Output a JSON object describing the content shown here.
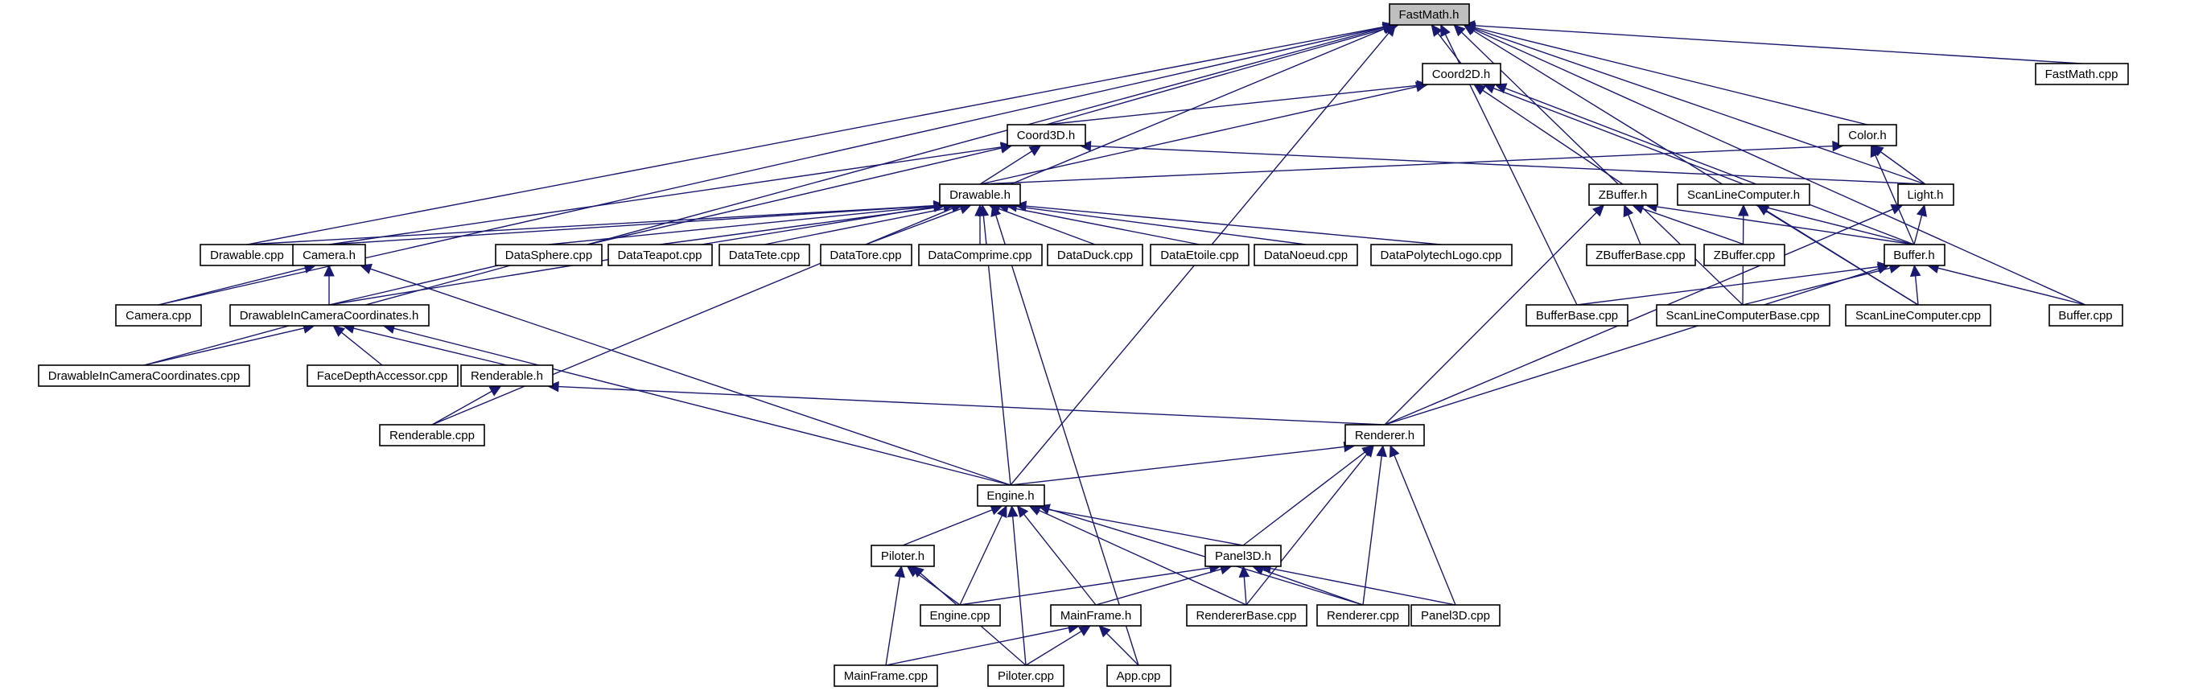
{
  "graph": {
    "title": "",
    "colors": {
      "edge": "#191970",
      "node_border": "#000000",
      "node_fill": "#ffffff",
      "root_fill": "#bfbfbf"
    },
    "nodes": [
      {
        "id": "FastMath.h",
        "label": "FastMath.h",
        "root": true
      },
      {
        "id": "Coord2D.h",
        "label": "Coord2D.h"
      },
      {
        "id": "FastMath.cpp",
        "label": "FastMath.cpp"
      },
      {
        "id": "Coord3D.h",
        "label": "Coord3D.h"
      },
      {
        "id": "Color.h",
        "label": "Color.h"
      },
      {
        "id": "Drawable.h",
        "label": "Drawable.h"
      },
      {
        "id": "ZBuffer.h",
        "label": "ZBuffer.h"
      },
      {
        "id": "ScanLineComputer.h",
        "label": "ScanLineComputer.h"
      },
      {
        "id": "Light.h",
        "label": "Light.h"
      },
      {
        "id": "Drawable.cpp",
        "label": "Drawable.cpp"
      },
      {
        "id": "Camera.h",
        "label": "Camera.h"
      },
      {
        "id": "DataSphere.cpp",
        "label": "DataSphere.cpp"
      },
      {
        "id": "DataTeapot.cpp",
        "label": "DataTeapot.cpp"
      },
      {
        "id": "DataTete.cpp",
        "label": "DataTete.cpp"
      },
      {
        "id": "DataTore.cpp",
        "label": "DataTore.cpp"
      },
      {
        "id": "DataComprime.cpp",
        "label": "DataComprime.cpp"
      },
      {
        "id": "DataDuck.cpp",
        "label": "DataDuck.cpp"
      },
      {
        "id": "DataEtoile.cpp",
        "label": "DataEtoile.cpp"
      },
      {
        "id": "DataNoeud.cpp",
        "label": "DataNoeud.cpp"
      },
      {
        "id": "DataPolytechLogo.cpp",
        "label": "DataPolytechLogo.cpp"
      },
      {
        "id": "ZBufferBase.cpp",
        "label": "ZBufferBase.cpp"
      },
      {
        "id": "ZBuffer.cpp",
        "label": "ZBuffer.cpp"
      },
      {
        "id": "Buffer.h",
        "label": "Buffer.h"
      },
      {
        "id": "Camera.cpp",
        "label": "Camera.cpp"
      },
      {
        "id": "DrawableInCameraCoordinates.h",
        "label": "DrawableInCameraCoordinates.h"
      },
      {
        "id": "BufferBase.cpp",
        "label": "BufferBase.cpp"
      },
      {
        "id": "ScanLineComputerBase.cpp",
        "label": "ScanLineComputerBase.cpp"
      },
      {
        "id": "ScanLineComputer.cpp",
        "label": "ScanLineComputer.cpp"
      },
      {
        "id": "Buffer.cpp",
        "label": "Buffer.cpp"
      },
      {
        "id": "DrawableInCameraCoordinates.cpp",
        "label": "DrawableInCameraCoordinates.cpp"
      },
      {
        "id": "FaceDepthAccessor.cpp",
        "label": "FaceDepthAccessor.cpp"
      },
      {
        "id": "Renderable.h",
        "label": "Renderable.h"
      },
      {
        "id": "Renderable.cpp",
        "label": "Renderable.cpp"
      },
      {
        "id": "Renderer.h",
        "label": "Renderer.h"
      },
      {
        "id": "Engine.h",
        "label": "Engine.h"
      },
      {
        "id": "Piloter.h",
        "label": "Piloter.h"
      },
      {
        "id": "Panel3D.h",
        "label": "Panel3D.h"
      },
      {
        "id": "Engine.cpp",
        "label": "Engine.cpp"
      },
      {
        "id": "MainFrame.h",
        "label": "MainFrame.h"
      },
      {
        "id": "RendererBase.cpp",
        "label": "RendererBase.cpp"
      },
      {
        "id": "Renderer.cpp",
        "label": "Renderer.cpp"
      },
      {
        "id": "Panel3D.cpp",
        "label": "Panel3D.cpp"
      },
      {
        "id": "MainFrame.cpp",
        "label": "MainFrame.cpp"
      },
      {
        "id": "Piloter.cpp",
        "label": "Piloter.cpp"
      },
      {
        "id": "App.cpp",
        "label": "App.cpp"
      }
    ],
    "edges": [
      [
        "Coord2D.h",
        "FastMath.h"
      ],
      [
        "FastMath.cpp",
        "FastMath.h"
      ],
      [
        "Coord3D.h",
        "FastMath.h"
      ],
      [
        "Color.h",
        "FastMath.h"
      ],
      [
        "Light.h",
        "FastMath.h"
      ],
      [
        "Drawable.cpp",
        "FastMath.h"
      ],
      [
        "Camera.cpp",
        "FastMath.h"
      ],
      [
        "DrawableInCameraCoordinates.cpp",
        "FastMath.h"
      ],
      [
        "Renderable.cpp",
        "FastMath.h"
      ],
      [
        "Engine.h",
        "FastMath.h"
      ],
      [
        "BufferBase.cpp",
        "FastMath.h"
      ],
      [
        "ScanLineComputerBase.cpp",
        "FastMath.h"
      ],
      [
        "ScanLineComputer.cpp",
        "FastMath.h"
      ],
      [
        "Buffer.cpp",
        "FastMath.h"
      ],
      [
        "Coord3D.h",
        "Coord2D.h"
      ],
      [
        "Drawable.h",
        "Coord2D.h"
      ],
      [
        "ZBuffer.h",
        "Coord2D.h"
      ],
      [
        "ScanLineComputer.h",
        "Coord2D.h"
      ],
      [
        "Buffer.h",
        "Coord2D.h"
      ],
      [
        "Drawable.h",
        "Coord3D.h"
      ],
      [
        "Light.h",
        "Coord3D.h"
      ],
      [
        "Camera.h",
        "Coord3D.h"
      ],
      [
        "DrawableInCameraCoordinates.h",
        "Coord3D.h"
      ],
      [
        "Drawable.h",
        "Color.h"
      ],
      [
        "Light.h",
        "Color.h"
      ],
      [
        "Buffer.h",
        "Color.h"
      ],
      [
        "Buffer.h",
        "Light.h"
      ],
      [
        "Renderer.h",
        "Light.h"
      ],
      [
        "Drawable.cpp",
        "Drawable.h"
      ],
      [
        "Camera.h",
        "Drawable.h"
      ],
      [
        "DrawableInCameraCoordinates.h",
        "Drawable.h"
      ],
      [
        "DataSphere.cpp",
        "Drawable.h"
      ],
      [
        "DataTeapot.cpp",
        "Drawable.h"
      ],
      [
        "DataTete.cpp",
        "Drawable.h"
      ],
      [
        "DataTore.cpp",
        "Drawable.h"
      ],
      [
        "DataComprime.cpp",
        "Drawable.h"
      ],
      [
        "DataDuck.cpp",
        "Drawable.h"
      ],
      [
        "DataEtoile.cpp",
        "Drawable.h"
      ],
      [
        "DataNoeud.cpp",
        "Drawable.h"
      ],
      [
        "DataPolytechLogo.cpp",
        "Drawable.h"
      ],
      [
        "Engine.h",
        "Drawable.h"
      ],
      [
        "App.cpp",
        "Drawable.h"
      ],
      [
        "ZBufferBase.cpp",
        "ZBuffer.h"
      ],
      [
        "ZBuffer.cpp",
        "ZBuffer.h"
      ],
      [
        "Buffer.h",
        "ZBuffer.h"
      ],
      [
        "Renderer.h",
        "ZBuffer.h"
      ],
      [
        "Buffer.h",
        "ScanLineComputer.h"
      ],
      [
        "ScanLineComputerBase.cpp",
        "ScanLineComputer.h"
      ],
      [
        "ScanLineComputer.cpp",
        "ScanLineComputer.h"
      ],
      [
        "Camera.cpp",
        "Camera.h"
      ],
      [
        "DrawableInCameraCoordinates.h",
        "Camera.h"
      ],
      [
        "Engine.h",
        "Camera.h"
      ],
      [
        "BufferBase.cpp",
        "Buffer.h"
      ],
      [
        "ScanLineComputerBase.cpp",
        "Buffer.h"
      ],
      [
        "ScanLineComputer.cpp",
        "Buffer.h"
      ],
      [
        "Buffer.cpp",
        "Buffer.h"
      ],
      [
        "Renderer.h",
        "Buffer.h"
      ],
      [
        "DrawableInCameraCoordinates.cpp",
        "DrawableInCameraCoordinates.h"
      ],
      [
        "FaceDepthAccessor.cpp",
        "DrawableInCameraCoordinates.h"
      ],
      [
        "Renderable.h",
        "DrawableInCameraCoordinates.h"
      ],
      [
        "Engine.h",
        "DrawableInCameraCoordinates.h"
      ],
      [
        "Renderable.cpp",
        "Renderable.h"
      ],
      [
        "Renderer.h",
        "Renderable.h"
      ],
      [
        "Engine.h",
        "Renderer.h"
      ],
      [
        "Panel3D.h",
        "Renderer.h"
      ],
      [
        "RendererBase.cpp",
        "Renderer.h"
      ],
      [
        "Renderer.cpp",
        "Renderer.h"
      ],
      [
        "Panel3D.cpp",
        "Renderer.h"
      ],
      [
        "Piloter.h",
        "Engine.h"
      ],
      [
        "Panel3D.h",
        "Engine.h"
      ],
      [
        "Engine.cpp",
        "Engine.h"
      ],
      [
        "MainFrame.h",
        "Engine.h"
      ],
      [
        "RendererBase.cpp",
        "Engine.h"
      ],
      [
        "Renderer.cpp",
        "Engine.h"
      ],
      [
        "Piloter.cpp",
        "Engine.h"
      ],
      [
        "Engine.cpp",
        "Piloter.h"
      ],
      [
        "MainFrame.cpp",
        "Piloter.h"
      ],
      [
        "Piloter.cpp",
        "Piloter.h"
      ],
      [
        "Engine.cpp",
        "Panel3D.h"
      ],
      [
        "MainFrame.h",
        "Panel3D.h"
      ],
      [
        "RendererBase.cpp",
        "Panel3D.h"
      ],
      [
        "Renderer.cpp",
        "Panel3D.h"
      ],
      [
        "Panel3D.cpp",
        "Panel3D.h"
      ],
      [
        "MainFrame.cpp",
        "MainFrame.h"
      ],
      [
        "Piloter.cpp",
        "MainFrame.h"
      ],
      [
        "App.cpp",
        "MainFrame.h"
      ]
    ]
  }
}
